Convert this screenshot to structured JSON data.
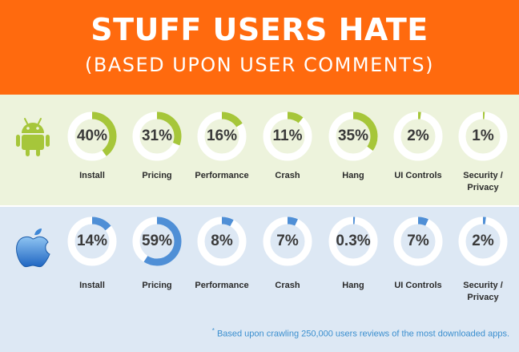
{
  "header": {
    "title": "STUFF USERS HATE",
    "subtitle": "(BASED UPON USER COMMENTS)"
  },
  "colors": {
    "header_bg": "#ff6a0e",
    "android_band": "#edf3dc",
    "apple_band": "#dde8f4",
    "android_arc": "#a6c63a",
    "apple_arc": "#4f8fd6",
    "ring_track": "#ffffff"
  },
  "chart_data": [
    {
      "type": "donut",
      "platform_icon": "android-robot-icon",
      "categories": [
        "Install",
        "Pricing",
        "Performance",
        "Crash",
        "Hang",
        "UI Controls",
        "Security / Privacy"
      ],
      "values": [
        40,
        31,
        16,
        11,
        35,
        2,
        1
      ],
      "labels": [
        "40%",
        "31%",
        "16%",
        "11%",
        "35%",
        "2%",
        "1%"
      ]
    },
    {
      "type": "donut",
      "platform_icon": "apple-logo-icon",
      "categories": [
        "Install",
        "Pricing",
        "Performance",
        "Crash",
        "Hang",
        "UI Controls",
        "Security / Privacy"
      ],
      "values": [
        14,
        59,
        8,
        7,
        0.3,
        7,
        2
      ],
      "labels": [
        "14%",
        "59%",
        "8%",
        "7%",
        "0.3%",
        "7%",
        "2%"
      ]
    }
  ],
  "footnote": {
    "marker": "*",
    "text": "Based upon crawling 250,000 users reviews of the most downloaded apps."
  }
}
